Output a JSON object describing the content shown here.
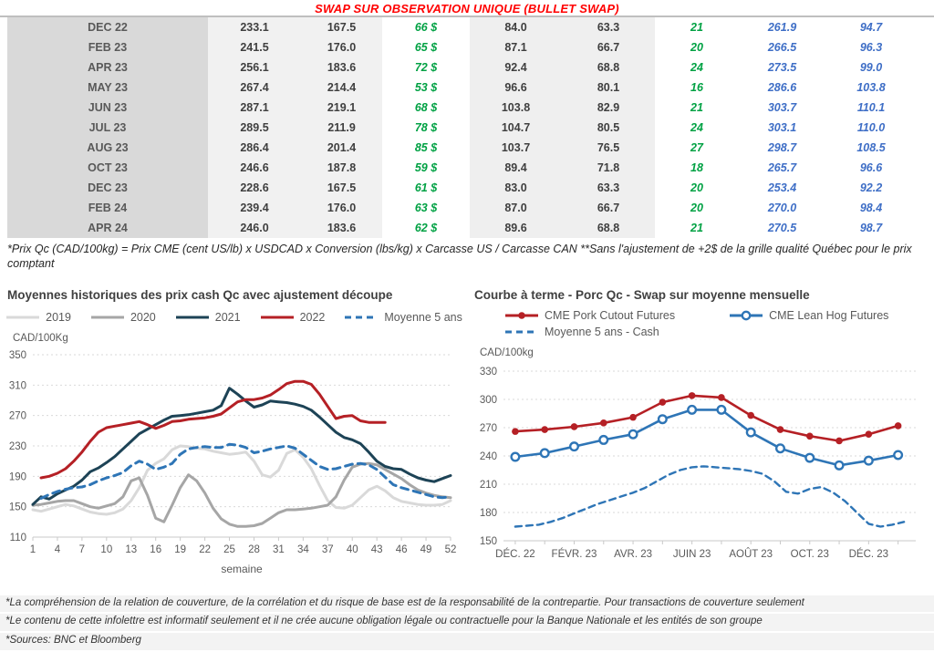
{
  "title": "SWAP SUR OBSERVATION UNIQUE (BULLET SWAP)",
  "colors": {
    "title_red": "#ff0000",
    "green_values": "#00a143",
    "blue_values": "#3e6ec6",
    "series_2019": "#d9d9d9",
    "series_2020": "#a6a6a6",
    "series_2021": "#1d4356",
    "series_2022": "#b52025",
    "series_avg5": "#2e75b6"
  },
  "table": {
    "rows": [
      [
        "DEC 22",
        "233.1",
        "167.5",
        "66 $",
        "84.0",
        "63.3",
        "21",
        "261.9",
        "94.7"
      ],
      [
        "FEB 23",
        "241.5",
        "176.0",
        "65 $",
        "87.1",
        "66.7",
        "20",
        "266.5",
        "96.3"
      ],
      [
        "APR 23",
        "256.1",
        "183.6",
        "72 $",
        "92.4",
        "68.8",
        "24",
        "273.5",
        "99.0"
      ],
      [
        "MAY 23",
        "267.4",
        "214.4",
        "53 $",
        "96.6",
        "80.1",
        "16",
        "286.6",
        "103.8"
      ],
      [
        "JUN 23",
        "287.1",
        "219.1",
        "68 $",
        "103.8",
        "82.9",
        "21",
        "303.7",
        "110.1"
      ],
      [
        "JUL 23",
        "289.5",
        "211.9",
        "78 $",
        "104.7",
        "80.5",
        "24",
        "303.1",
        "110.0"
      ],
      [
        "AUG 23",
        "286.4",
        "201.4",
        "85 $",
        "103.7",
        "76.5",
        "27",
        "298.7",
        "108.5"
      ],
      [
        "OCT 23",
        "246.6",
        "187.8",
        "59 $",
        "89.4",
        "71.8",
        "18",
        "265.7",
        "96.6"
      ],
      [
        "DEC 23",
        "228.6",
        "167.5",
        "61 $",
        "83.0",
        "63.3",
        "20",
        "253.4",
        "92.2"
      ],
      [
        "FEB 24",
        "239.4",
        "176.0",
        "63 $",
        "87.0",
        "66.7",
        "20",
        "270.0",
        "98.4"
      ],
      [
        "APR 24",
        "246.0",
        "183.6",
        "62 $",
        "89.6",
        "68.8",
        "21",
        "270.5",
        "98.7"
      ]
    ],
    "footnote": "*Prix Qc (CAD/100kg) = Prix CME (cent US/lb) x USDCAD x Conversion (lbs/kg) x Carcasse US / Carcasse CAN **Sans l'ajustement de +2$ de la grille qualité Québec pour le prix comptant"
  },
  "chart_data": [
    {
      "type": "line",
      "title": "Moyennes historiques des prix cash Qc avec ajustement découpe",
      "ylabel": "CAD/100Kg",
      "xlabel": "semaine",
      "ylim": [
        110,
        350
      ],
      "yticks": [
        110,
        150,
        190,
        230,
        270,
        310,
        350
      ],
      "x_ticks": [
        1,
        4,
        7,
        10,
        13,
        16,
        19,
        22,
        25,
        28,
        31,
        34,
        37,
        40,
        43,
        46,
        49,
        52
      ],
      "grid": "dashed-horizontal",
      "legend_position": "top-center",
      "series": [
        {
          "name": "2019",
          "color": "#d9d9d9",
          "width": 3,
          "x_start": 1,
          "values": [
            146,
            144,
            147,
            150,
            153,
            151,
            147,
            143,
            141,
            140,
            142,
            147,
            158,
            175,
            198,
            207,
            213,
            225,
            230,
            229,
            227,
            226,
            223,
            221,
            219,
            220,
            222,
            210,
            192,
            189,
            198,
            220,
            225,
            215,
            200,
            178,
            158,
            149,
            148,
            152,
            162,
            172,
            177,
            171,
            162,
            157,
            155,
            153,
            152,
            152,
            153,
            158
          ]
        },
        {
          "name": "2020",
          "color": "#a6a6a6",
          "width": 3,
          "x_start": 1,
          "values": [
            152,
            153,
            155,
            157,
            158,
            158,
            154,
            150,
            148,
            151,
            154,
            163,
            184,
            188,
            165,
            135,
            130,
            152,
            175,
            192,
            184,
            168,
            148,
            134,
            127,
            124,
            124,
            125,
            128,
            135,
            142,
            146,
            146,
            147,
            148,
            150,
            152,
            163,
            185,
            202,
            206,
            207,
            205,
            199,
            193,
            187,
            179,
            172,
            168,
            165,
            163,
            162
          ]
        },
        {
          "name": "2021",
          "color": "#1d4356",
          "width": 3,
          "x_start": 1,
          "values": [
            153,
            163,
            160,
            167,
            172,
            177,
            185,
            196,
            201,
            208,
            216,
            226,
            236,
            246,
            252,
            258,
            264,
            269,
            270,
            271,
            273,
            275,
            277,
            283,
            306,
            298,
            289,
            281,
            284,
            289,
            288,
            287,
            285,
            282,
            277,
            268,
            258,
            248,
            241,
            238,
            233,
            222,
            210,
            203,
            200,
            199,
            193,
            188,
            185,
            183,
            187,
            191
          ]
        },
        {
          "name": "2022",
          "color": "#b52025",
          "width": 3,
          "x_start": 1,
          "values": [
            null,
            188,
            190,
            194,
            200,
            210,
            222,
            236,
            248,
            254,
            256,
            258,
            260,
            262,
            258,
            253,
            257,
            262,
            263,
            265,
            266,
            267,
            269,
            272,
            280,
            288,
            291,
            291,
            293,
            297,
            304,
            312,
            315,
            315,
            311,
            298,
            282,
            266,
            269,
            270,
            263,
            261,
            261,
            261,
            null,
            null,
            null,
            null,
            null,
            null,
            null,
            null
          ]
        },
        {
          "name": "Moyenne 5 ans",
          "color": "#2e75b6",
          "width": 3,
          "dash": "8,6",
          "x_start": 1,
          "values": [
            null,
            161,
            166,
            170,
            173,
            175,
            176,
            179,
            184,
            188,
            191,
            195,
            204,
            210,
            206,
            199,
            202,
            207,
            219,
            226,
            228,
            229,
            228,
            228,
            232,
            231,
            228,
            221,
            223,
            226,
            228,
            230,
            227,
            219,
            211,
            203,
            199,
            200,
            203,
            206,
            207,
            205,
            199,
            189,
            179,
            175,
            172,
            169,
            166,
            163,
            162,
            163
          ]
        }
      ]
    },
    {
      "type": "line",
      "title": "Courbe à terme - Porc Qc - Swap sur moyenne mensuelle",
      "ylabel": "CAD/100kg",
      "xlabel": "",
      "ylim": [
        150,
        330
      ],
      "yticks": [
        150,
        180,
        210,
        240,
        270,
        300,
        330
      ],
      "x_tick_marks": [
        0,
        1,
        2,
        3,
        4,
        5,
        6,
        7,
        8,
        9,
        10,
        11,
        12,
        13
      ],
      "x_tick_labels": [
        {
          "pos": 0,
          "label": "DÉC. 22"
        },
        {
          "pos": 2,
          "label": "FÉVR. 23"
        },
        {
          "pos": 4,
          "label": "AVR. 23"
        },
        {
          "pos": 6,
          "label": "JUIN 23"
        },
        {
          "pos": 8,
          "label": "AOÛT 23"
        },
        {
          "pos": 10,
          "label": "OCT. 23"
        },
        {
          "pos": 12,
          "label": "DÉC. 23"
        }
      ],
      "grid": "dashed-horizontal",
      "legend_position": "top-left",
      "series": [
        {
          "name": "CME Pork Cutout Futures",
          "color": "#b52025",
          "width": 2.6,
          "marker": "dot",
          "x_start": 0,
          "values": [
            266,
            268,
            271,
            275,
            281,
            297,
            304,
            302,
            283,
            268,
            261,
            256,
            263,
            272
          ]
        },
        {
          "name": "CME Lean Hog Futures",
          "color": "#2e75b6",
          "width": 2.6,
          "marker": "ring",
          "x_start": 0,
          "values": [
            239,
            243,
            250,
            257,
            263,
            279,
            289,
            289,
            265,
            248,
            238,
            230,
            235,
            241
          ]
        },
        {
          "name": "Moyenne 5 ans - Cash",
          "color": "#2e75b6",
          "width": 2.4,
          "dash": "7,5",
          "points": [
            [
              0,
              165
            ],
            [
              0.4,
              166
            ],
            [
              0.8,
              167
            ],
            [
              1.2,
              170
            ],
            [
              1.6,
              174
            ],
            [
              2,
              179
            ],
            [
              2.4,
              184
            ],
            [
              2.8,
              189
            ],
            [
              3.2,
              193
            ],
            [
              3.6,
              197
            ],
            [
              4,
              201
            ],
            [
              4.4,
              206
            ],
            [
              4.8,
              213
            ],
            [
              5.2,
              220
            ],
            [
              5.6,
              225
            ],
            [
              6,
              228
            ],
            [
              6.4,
              229
            ],
            [
              6.8,
              228
            ],
            [
              7.2,
              227
            ],
            [
              7.6,
              226
            ],
            [
              8,
              224
            ],
            [
              8.4,
              221
            ],
            [
              8.8,
              213
            ],
            [
              9.2,
              202
            ],
            [
              9.6,
              200
            ],
            [
              10,
              205
            ],
            [
              10.4,
              207
            ],
            [
              10.8,
              201
            ],
            [
              11.2,
              192
            ],
            [
              11.6,
              180
            ],
            [
              12,
              168
            ],
            [
              12.4,
              165
            ],
            [
              12.8,
              167
            ],
            [
              13.2,
              170
            ]
          ]
        }
      ]
    }
  ],
  "footers": [
    "*La compréhension de la relation de couverture, de la corrélation et du risque de base est de la responsabilité de la contrepartie. Pour transactions de couverture seulement",
    "*Le contenu de cette infolettre est informatif seulement et il ne crée aucune obligation légale ou contractuelle pour la Banque Nationale et les entités de son groupe",
    "*Sources: BNC et Bloomberg"
  ]
}
